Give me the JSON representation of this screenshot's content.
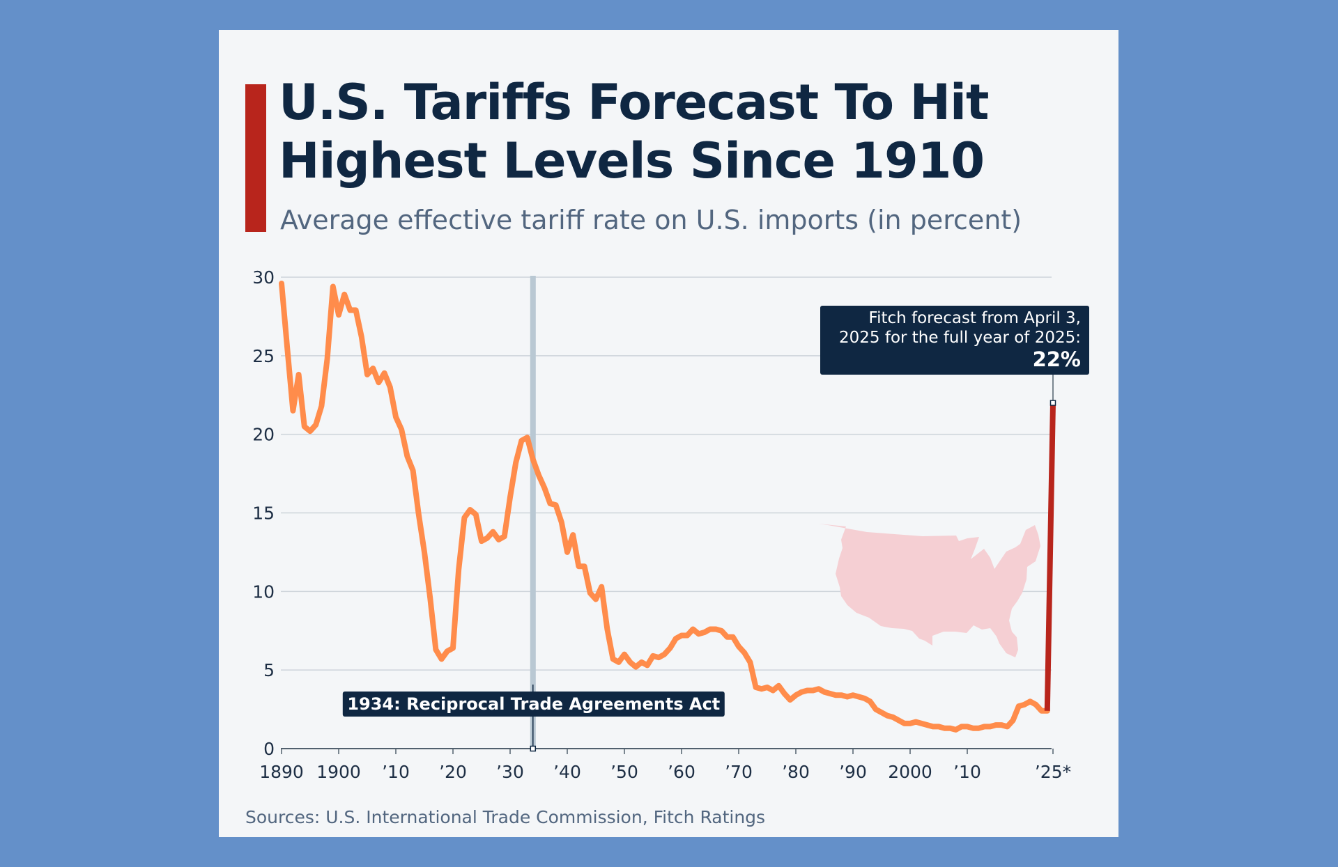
{
  "title": "U.S. Tariffs Forecast To Hit Highest Levels Since 1910",
  "subtitle": "Average effective tariff rate on U.S. imports (in percent)",
  "source": "Sources: U.S. International Trade Commission, Fitch Ratings",
  "colors": {
    "page_background": "#6490c9",
    "card_background": "#f4f6f8",
    "accent": "#b8251c",
    "historical_line": "#ff8c4b",
    "forecast_line": "#b8251c",
    "annotation_background": "#0f2742",
    "event_band": "#b9c8d3",
    "map_fill": "#f5cfd3"
  },
  "icons": [
    "us-map-silhouette-icon"
  ],
  "chart_data": {
    "type": "line",
    "title": "U.S. Tariffs Forecast To Hit Highest Levels Since 1910",
    "subtitle": "Average effective tariff rate on U.S. imports (in percent)",
    "xlabel": "",
    "ylabel": "",
    "xlim": [
      1890,
      2025
    ],
    "ylim": [
      0,
      30
    ],
    "yticks": [
      0,
      5,
      10,
      15,
      20,
      25,
      30
    ],
    "xticks": [
      {
        "value": 1890,
        "label": "1890"
      },
      {
        "value": 1900,
        "label": "1900"
      },
      {
        "value": 1910,
        "label": "’10"
      },
      {
        "value": 1920,
        "label": "’20"
      },
      {
        "value": 1930,
        "label": "’30"
      },
      {
        "value": 1940,
        "label": "’40"
      },
      {
        "value": 1950,
        "label": "’50"
      },
      {
        "value": 1960,
        "label": "’60"
      },
      {
        "value": 1970,
        "label": "’70"
      },
      {
        "value": 1980,
        "label": "’80"
      },
      {
        "value": 1990,
        "label": "’90"
      },
      {
        "value": 2000,
        "label": "2000"
      },
      {
        "value": 2010,
        "label": "’10"
      },
      {
        "value": 2025,
        "label": "’25*"
      }
    ],
    "grid": true,
    "legend": "none",
    "series": [
      {
        "x": [
          1890,
          1891,
          1892,
          1893,
          1894,
          1895,
          1896,
          1897,
          1898,
          1899,
          1900,
          1901,
          1902,
          1903,
          1904,
          1905,
          1906,
          1907,
          1908,
          1909,
          1910,
          1911,
          1912,
          1913,
          1914,
          1915,
          1916,
          1917,
          1918,
          1919,
          1920,
          1921,
          1922,
          1923,
          1924,
          1925,
          1926,
          1927,
          1928,
          1929,
          1930,
          1931,
          1932,
          1933,
          1934,
          1935,
          1936,
          1937,
          1938,
          1939,
          1940,
          1941,
          1942,
          1943,
          1944,
          1945,
          1946,
          1947,
          1948,
          1949,
          1950,
          1951,
          1952,
          1953,
          1954,
          1955,
          1956,
          1957,
          1958,
          1959,
          1960,
          1961,
          1962,
          1963,
          1964,
          1965,
          1966,
          1967,
          1968,
          1969,
          1970,
          1971,
          1972,
          1973,
          1974,
          1975,
          1976,
          1977,
          1978,
          1979,
          1980,
          1981,
          1982,
          1983,
          1984,
          1985,
          1986,
          1987,
          1988,
          1989,
          1990,
          1991,
          1992,
          1993,
          1994,
          1995,
          1996,
          1997,
          1998,
          1999,
          2000,
          2001,
          2002,
          2003,
          2004,
          2005,
          2006,
          2007,
          2008,
          2009,
          2010,
          2011,
          2012,
          2013,
          2014,
          2015,
          2016,
          2017,
          2018,
          2019,
          2020,
          2021,
          2022,
          2023,
          2024
        ],
        "values": [
          29.6,
          25.5,
          21.5,
          23.8,
          20.5,
          20.2,
          20.6,
          21.8,
          24.8,
          29.4,
          27.6,
          28.9,
          27.9,
          27.9,
          26.2,
          23.8,
          24.2,
          23.3,
          23.9,
          23.0,
          21.1,
          20.3,
          18.6,
          17.7,
          14.9,
          12.5,
          9.6,
          6.3,
          5.7,
          6.2,
          6.4,
          11.4,
          14.7,
          15.2,
          14.9,
          13.2,
          13.4,
          13.8,
          13.3,
          13.5,
          16.0,
          18.2,
          19.6,
          19.8,
          18.4,
          17.4,
          16.6,
          15.6,
          15.5,
          14.4,
          12.5,
          13.6,
          11.6,
          11.6,
          9.9,
          9.5,
          10.3,
          7.6,
          5.7,
          5.5,
          6.0,
          5.5,
          5.2,
          5.5,
          5.3,
          5.9,
          5.8,
          6.0,
          6.4,
          7.0,
          7.2,
          7.2,
          7.6,
          7.3,
          7.4,
          7.6,
          7.6,
          7.5,
          7.1,
          7.1,
          6.5,
          6.1,
          5.5,
          3.9,
          3.8,
          3.9,
          3.7,
          4.0,
          3.5,
          3.1,
          3.4,
          3.6,
          3.7,
          3.7,
          3.8,
          3.6,
          3.5,
          3.4,
          3.4,
          3.3,
          3.4,
          3.3,
          3.2,
          3.0,
          2.5,
          2.3,
          2.1,
          2.0,
          1.8,
          1.6,
          1.6,
          1.7,
          1.6,
          1.5,
          1.4,
          1.4,
          1.3,
          1.3,
          1.2,
          1.4,
          1.4,
          1.3,
          1.3,
          1.4,
          1.4,
          1.5,
          1.5,
          1.4,
          1.8,
          2.7,
          2.8,
          3.0,
          2.8,
          2.4,
          2.4
        ]
      },
      {
        "x": [
          2024,
          2025
        ],
        "values": [
          2.4,
          22
        ]
      }
    ],
    "annotations": [
      {
        "x": 1934,
        "label": "1934: Reciprocal Trade Agreements Act"
      },
      {
        "x": 2025,
        "y": 22,
        "text_line1": "Fitch forecast from April 3,",
        "text_line2": "2025 for the full year of 2025:",
        "value_label": "22%"
      }
    ]
  }
}
